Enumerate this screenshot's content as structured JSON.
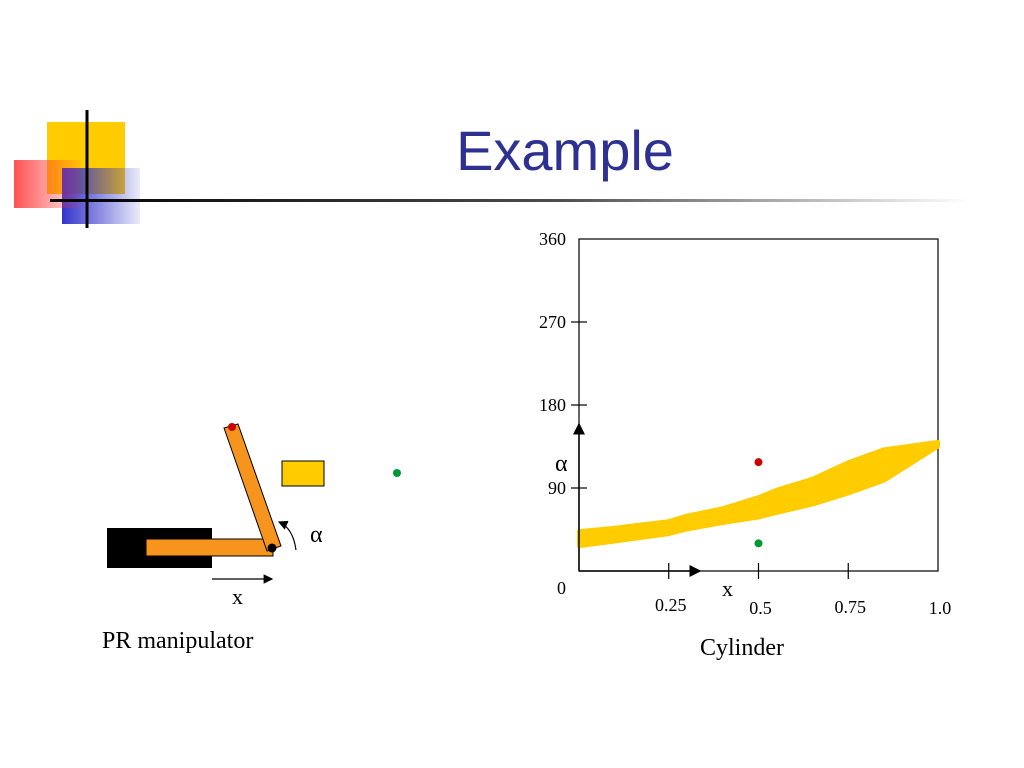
{
  "slide": {
    "title": "Example",
    "colors": {
      "title": "#2e3192",
      "deco_yellow": "#ffcc00",
      "deco_blue": "#3333cc",
      "deco_red": "#ff3333",
      "link_orange": "#f7941d",
      "obstacle_yellow": "#ffcc00",
      "base_black": "#000000",
      "point_red": "#cc0000",
      "point_green": "#009933"
    }
  },
  "robot": {
    "caption": "PR manipulator",
    "x_label": "x",
    "angle_label": "α"
  },
  "chart_data": {
    "type": "area",
    "caption": "Cylinder",
    "xlabel": "x",
    "ylabel": "α",
    "xlim": [
      0,
      1.0
    ],
    "ylim": [
      0,
      360
    ],
    "x_ticks": [
      "0.25",
      "0.5",
      "0.75",
      "1.0"
    ],
    "y_ticks": [
      "0",
      "90",
      "180",
      "270",
      "360"
    ],
    "obstacle_region": {
      "x": [
        0.0,
        0.1,
        0.25,
        0.3,
        0.4,
        0.5,
        0.55,
        0.65,
        0.75,
        0.85,
        1.0
      ],
      "lower": [
        27,
        32,
        40,
        45,
        52,
        58,
        63,
        72,
        84,
        98,
        135
      ],
      "upper": [
        43,
        47,
        54,
        60,
        68,
        80,
        88,
        100,
        118,
        132,
        140
      ]
    },
    "points": [
      {
        "x": 0.5,
        "y": 118,
        "color": "#cc0000"
      },
      {
        "x": 0.5,
        "y": 30,
        "color": "#009933"
      }
    ]
  }
}
